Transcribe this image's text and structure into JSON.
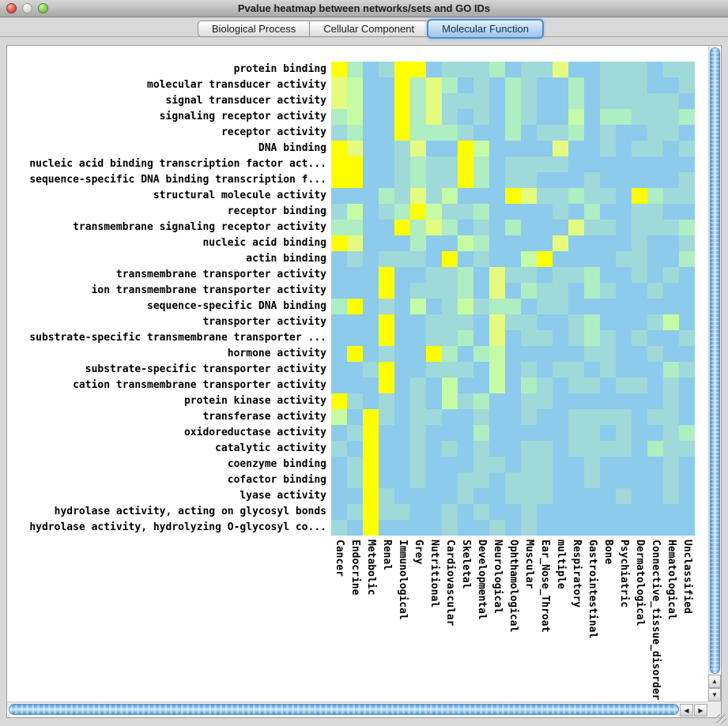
{
  "window": {
    "title": "Pvalue heatmap between networks/sets and GO IDs"
  },
  "tabs": [
    {
      "label": "Biological Process",
      "selected": false
    },
    {
      "label": "Cellular Component",
      "selected": false
    },
    {
      "label": "Molecular Function",
      "selected": true
    }
  ],
  "chart_data": {
    "type": "heatmap",
    "rows": [
      "protein binding",
      "molecular transducer activity",
      "signal transducer activity",
      "signaling receptor activity",
      "receptor activity",
      "DNA binding",
      "nucleic acid binding transcription factor act...",
      "sequence-specific DNA binding transcription f...",
      "structural molecule activity",
      "receptor binding",
      "transmembrane signaling receptor activity",
      "nucleic acid binding",
      "actin binding",
      "transmembrane transporter activity",
      "ion transmembrane transporter activity",
      "sequence-specific DNA binding",
      "transporter activity",
      "substrate-specific transmembrane transporter ...",
      "hormone activity",
      "substrate-specific transporter activity",
      "cation transmembrane transporter activity",
      "protein kinase activity",
      "transferase activity",
      "oxidoreductase activity",
      "catalytic activity",
      "coenzyme binding",
      "cofactor binding",
      "lyase activity",
      "hydrolase activity, acting on glycosyl bonds",
      "hydrolase activity, hydrolyzing O-glycosyl co..."
    ],
    "columns": [
      "Cancer",
      "Endocrine",
      "Metabolic",
      "Renal",
      "Immunological",
      "Grey",
      "Nutritional",
      "Cardiovascular",
      "Skeletal",
      "Developmental",
      "Neurological",
      "Ophthamological",
      "Muscular",
      "Ear_Nose_Throat",
      "multiple",
      "Respiratory",
      "Gastrointestinal",
      "Bone",
      "Psychiatric",
      "Dermatological",
      "Connective_tissue_disorder",
      "Hematological",
      "Unclassified"
    ],
    "palette": [
      "#8CCBEB",
      "#9FD9DA",
      "#AFEDC2",
      "#C5FBA4",
      "#E4FB80",
      "#FFFF00"
    ],
    "palette_note": "color-intensity levels read from pixels: 0 = low (light blue) to 5 = high (bright yellow)",
    "grid": [
      [
        5,
        2,
        0,
        1,
        5,
        5,
        0,
        1,
        1,
        1,
        2,
        0,
        1,
        1,
        4,
        0,
        0,
        1,
        1,
        1,
        0,
        1,
        1
      ],
      [
        4,
        3,
        0,
        0,
        5,
        2,
        4,
        2,
        0,
        1,
        0,
        2,
        1,
        0,
        0,
        2,
        0,
        1,
        1,
        1,
        0,
        0,
        1
      ],
      [
        4,
        3,
        0,
        0,
        5,
        2,
        4,
        1,
        1,
        1,
        0,
        2,
        1,
        0,
        0,
        2,
        0,
        1,
        1,
        1,
        1,
        1,
        0
      ],
      [
        2,
        3,
        0,
        0,
        5,
        2,
        4,
        1,
        0,
        1,
        0,
        2,
        1,
        0,
        0,
        3,
        0,
        2,
        2,
        1,
        1,
        1,
        2
      ],
      [
        1,
        2,
        0,
        0,
        5,
        2,
        2,
        2,
        1,
        0,
        0,
        2,
        0,
        1,
        1,
        2,
        0,
        1,
        0,
        0,
        1,
        1,
        0
      ],
      [
        5,
        4,
        0,
        0,
        1,
        4,
        0,
        0,
        5,
        3,
        0,
        0,
        0,
        0,
        4,
        0,
        0,
        1,
        0,
        1,
        1,
        0,
        1
      ],
      [
        5,
        5,
        0,
        0,
        1,
        2,
        1,
        1,
        5,
        2,
        0,
        1,
        1,
        1,
        1,
        0,
        0,
        0,
        0,
        0,
        0,
        0,
        0
      ],
      [
        5,
        5,
        0,
        0,
        1,
        2,
        1,
        1,
        5,
        2,
        0,
        1,
        1,
        0,
        0,
        0,
        1,
        0,
        0,
        0,
        0,
        0,
        1
      ],
      [
        0,
        0,
        0,
        2,
        1,
        4,
        1,
        3,
        0,
        0,
        0,
        5,
        4,
        1,
        1,
        2,
        1,
        1,
        0,
        5,
        2,
        1,
        1
      ],
      [
        1,
        3,
        0,
        1,
        2,
        5,
        3,
        1,
        1,
        2,
        0,
        0,
        0,
        0,
        1,
        0,
        2,
        0,
        0,
        1,
        1,
        0,
        0
      ],
      [
        2,
        2,
        0,
        0,
        5,
        2,
        4,
        2,
        0,
        1,
        0,
        2,
        0,
        0,
        0,
        4,
        1,
        1,
        0,
        1,
        1,
        1,
        2
      ],
      [
        5,
        4,
        0,
        0,
        0,
        2,
        0,
        0,
        3,
        2,
        0,
        0,
        0,
        0,
        4,
        0,
        0,
        0,
        0,
        1,
        0,
        0,
        1
      ],
      [
        0,
        1,
        0,
        1,
        1,
        1,
        0,
        5,
        0,
        1,
        0,
        0,
        3,
        5,
        0,
        0,
        0,
        0,
        1,
        1,
        0,
        0,
        2
      ],
      [
        0,
        0,
        0,
        5,
        0,
        0,
        1,
        1,
        2,
        0,
        4,
        1,
        1,
        0,
        1,
        1,
        2,
        0,
        0,
        1,
        0,
        1,
        0
      ],
      [
        0,
        0,
        0,
        5,
        0,
        1,
        1,
        1,
        2,
        0,
        4,
        0,
        2,
        1,
        1,
        0,
        2,
        1,
        0,
        0,
        1,
        0,
        0
      ],
      [
        2,
        5,
        0,
        1,
        0,
        3,
        0,
        1,
        3,
        1,
        2,
        2,
        0,
        1,
        1,
        0,
        0,
        0,
        0,
        0,
        0,
        0,
        0
      ],
      [
        0,
        0,
        0,
        5,
        0,
        0,
        1,
        1,
        1,
        0,
        4,
        1,
        1,
        0,
        0,
        1,
        2,
        0,
        0,
        0,
        1,
        3,
        0
      ],
      [
        0,
        0,
        0,
        5,
        0,
        0,
        1,
        1,
        2,
        0,
        4,
        0,
        1,
        1,
        0,
        1,
        2,
        1,
        0,
        1,
        0,
        0,
        1
      ],
      [
        0,
        5,
        0,
        1,
        0,
        0,
        5,
        2,
        0,
        2,
        3,
        0,
        0,
        0,
        0,
        0,
        1,
        1,
        0,
        0,
        1,
        0,
        0
      ],
      [
        0,
        0,
        1,
        5,
        0,
        0,
        1,
        1,
        1,
        0,
        3,
        0,
        1,
        0,
        1,
        1,
        0,
        1,
        0,
        0,
        0,
        2,
        1
      ],
      [
        0,
        0,
        0,
        5,
        0,
        1,
        0,
        3,
        0,
        0,
        3,
        0,
        2,
        1,
        0,
        1,
        1,
        0,
        1,
        1,
        0,
        1,
        0
      ],
      [
        5,
        1,
        0,
        1,
        0,
        1,
        0,
        3,
        1,
        2,
        0,
        0,
        1,
        1,
        0,
        0,
        0,
        0,
        0,
        0,
        0,
        1,
        0
      ],
      [
        3,
        0,
        5,
        1,
        0,
        1,
        1,
        0,
        0,
        1,
        0,
        0,
        1,
        0,
        0,
        1,
        1,
        1,
        1,
        0,
        1,
        1,
        0
      ],
      [
        0,
        1,
        5,
        0,
        0,
        1,
        0,
        0,
        0,
        2,
        0,
        0,
        0,
        0,
        0,
        1,
        1,
        0,
        1,
        0,
        0,
        1,
        2
      ],
      [
        1,
        0,
        5,
        0,
        0,
        1,
        0,
        1,
        0,
        1,
        0,
        0,
        1,
        1,
        0,
        1,
        1,
        1,
        1,
        0,
        2,
        1,
        1
      ],
      [
        0,
        1,
        5,
        0,
        0,
        1,
        0,
        0,
        0,
        1,
        1,
        0,
        1,
        1,
        0,
        0,
        1,
        0,
        0,
        0,
        0,
        1,
        0
      ],
      [
        0,
        1,
        5,
        0,
        0,
        1,
        0,
        0,
        1,
        1,
        0,
        1,
        1,
        1,
        0,
        0,
        1,
        0,
        0,
        0,
        0,
        1,
        0
      ],
      [
        0,
        0,
        5,
        1,
        0,
        0,
        0,
        0,
        1,
        0,
        0,
        1,
        1,
        1,
        0,
        0,
        0,
        0,
        1,
        0,
        0,
        1,
        0
      ],
      [
        0,
        1,
        5,
        1,
        1,
        0,
        0,
        1,
        0,
        1,
        0,
        0,
        1,
        0,
        0,
        0,
        0,
        0,
        0,
        0,
        0,
        0,
        0
      ],
      [
        1,
        0,
        5,
        0,
        0,
        0,
        0,
        1,
        0,
        0,
        1,
        0,
        1,
        0,
        0,
        0,
        0,
        0,
        0,
        0,
        0,
        0,
        0
      ]
    ]
  },
  "scrollbar_glyphs": {
    "up": "▲",
    "down": "▼",
    "left": "◀",
    "right": "▶"
  }
}
